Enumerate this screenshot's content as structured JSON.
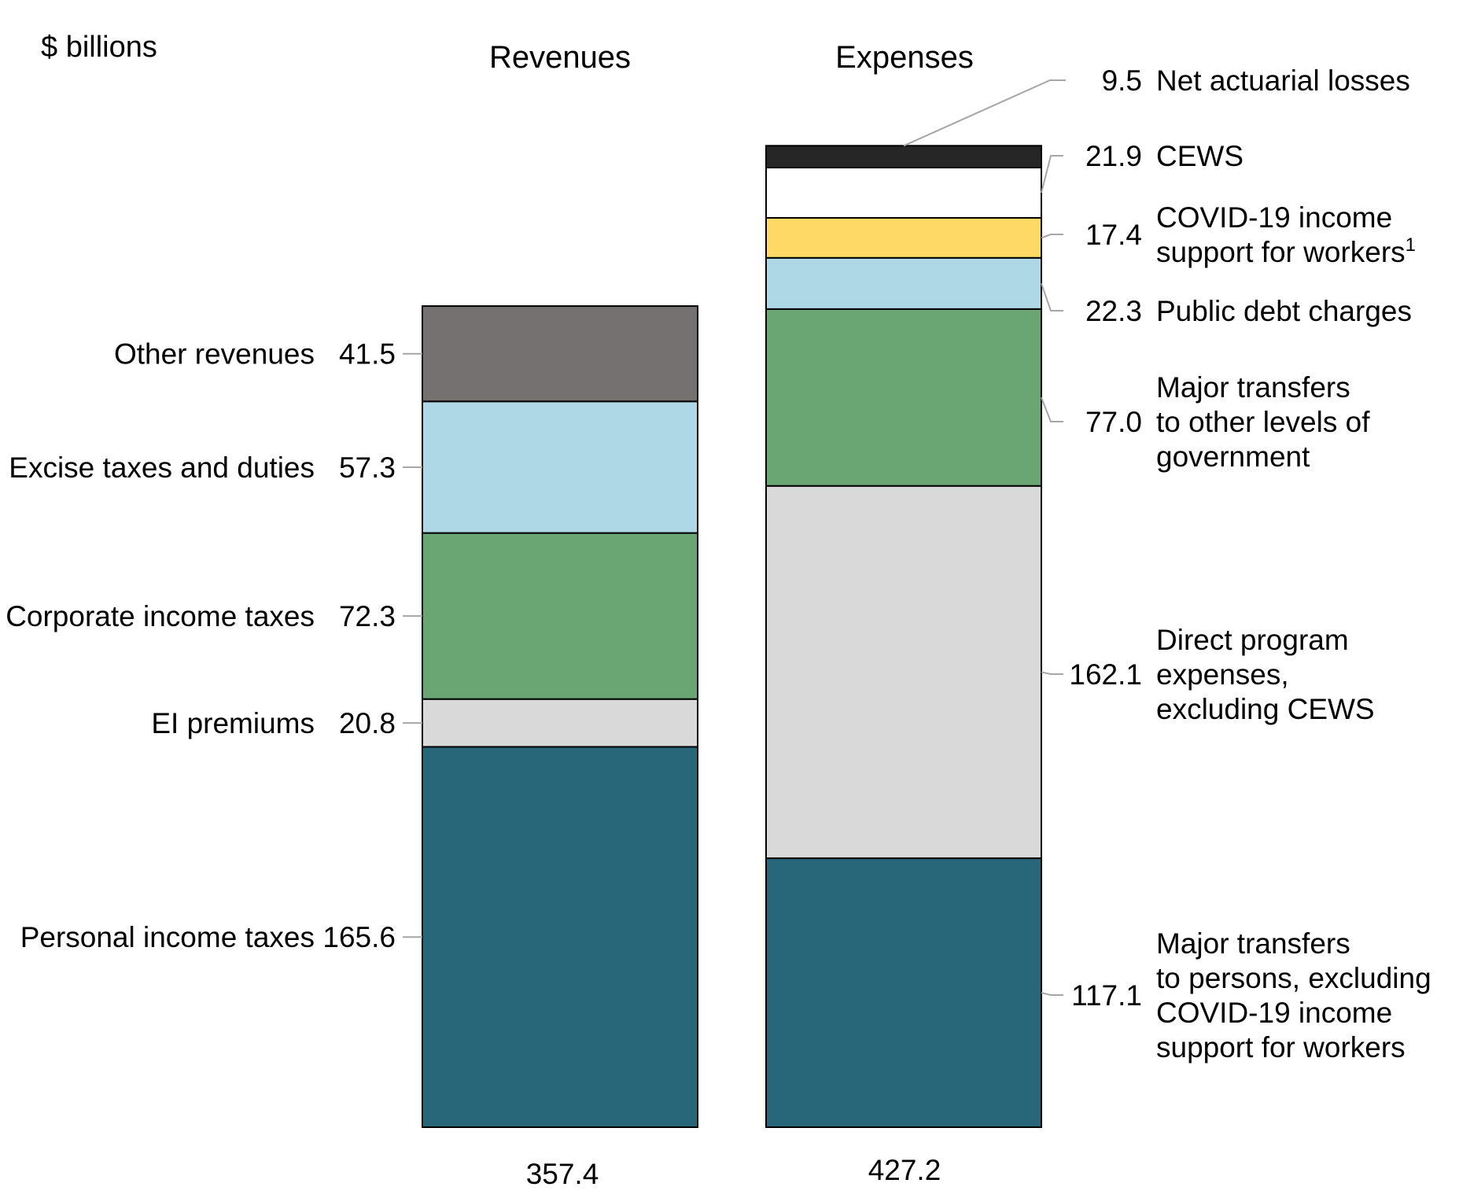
{
  "chart_data": {
    "type": "bar",
    "stacked": true,
    "unit_label": "$ billions",
    "categories": [
      "Revenues",
      "Expenses"
    ],
    "totals": [
      "357.4",
      "427.2"
    ],
    "revenues": [
      {
        "name": "Personal income taxes",
        "value": 165.6,
        "value_label": "165.6",
        "color": "#28677a"
      },
      {
        "name": "EI premiums",
        "value": 20.8,
        "value_label": "20.8",
        "color": "#d9d9d9"
      },
      {
        "name": "Corporate income taxes",
        "value": 72.3,
        "value_label": "72.3",
        "color": "#6aa574"
      },
      {
        "name": "Excise taxes and duties",
        "value": 57.3,
        "value_label": "57.3",
        "color": "#aed8e5"
      },
      {
        "name": "Other revenues",
        "value": 41.5,
        "value_label": "41.5",
        "color": "#757171"
      }
    ],
    "expenses": [
      {
        "lines": [
          "Major transfers",
          "to persons, excluding",
          "COVID-19 income",
          "support for workers"
        ],
        "value": 117.1,
        "value_label": "117.1",
        "color": "#28677a"
      },
      {
        "lines": [
          "Direct program",
          "expenses,",
          "excluding CEWS"
        ],
        "value": 162.1,
        "value_label": "162.1",
        "color": "#d9d9d9"
      },
      {
        "lines": [
          "Major transfers",
          "to other levels of",
          "government"
        ],
        "value": 77.0,
        "value_label": "77.0",
        "color": "#6aa574"
      },
      {
        "lines": [
          "Public debt charges"
        ],
        "value": 22.3,
        "value_label": "22.3",
        "color": "#aed8e5"
      },
      {
        "lines": [
          "COVID-19 income",
          "support for workers"
        ],
        "superscript": "1",
        "value": 17.4,
        "value_label": "17.4",
        "color": "#ffd966"
      },
      {
        "lines": [
          "CEWS"
        ],
        "value": 21.9,
        "value_label": "21.9",
        "color": "#ffffff"
      },
      {
        "lines": [
          "Net actuarial losses"
        ],
        "value": 9.5,
        "value_label": "9.5",
        "color": "#262626"
      }
    ]
  }
}
